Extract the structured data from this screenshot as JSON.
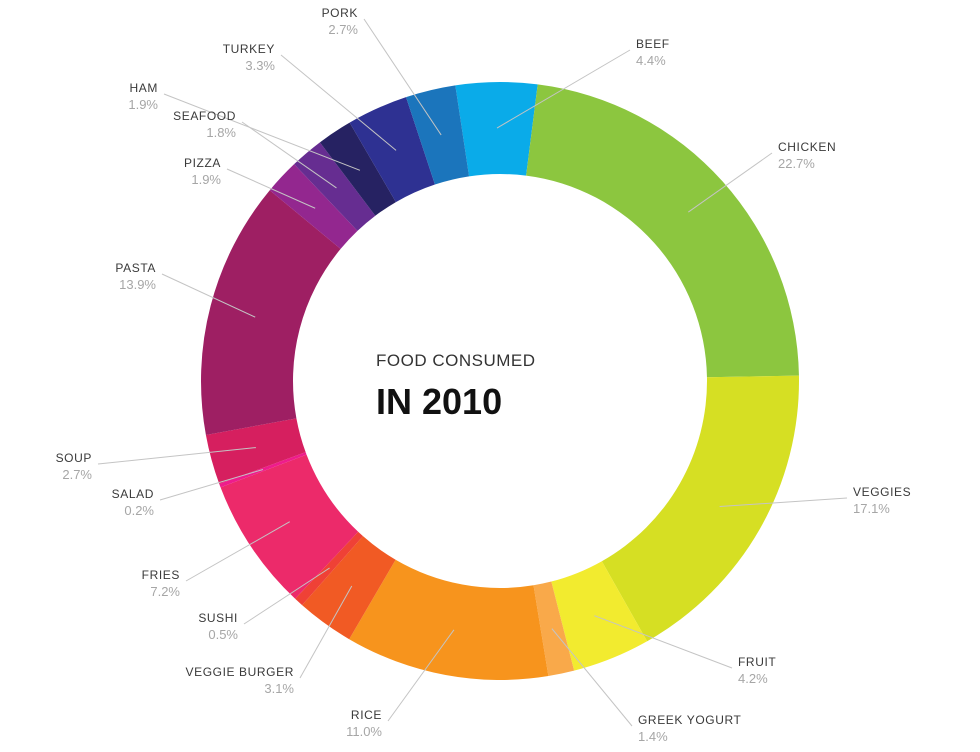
{
  "chart_data": {
    "type": "pie",
    "title": "FOOD CONSUMED",
    "subtitle": "IN 2010",
    "slices": [
      {
        "label": "BEEF",
        "value_text": "4.4%",
        "value": 4.4,
        "color": "#0aabe9"
      },
      {
        "label": "CHICKEN",
        "value_text": "22.7%",
        "value": 22.7,
        "color": "#8cc63f"
      },
      {
        "label": "VEGGIES",
        "value_text": "17.1%",
        "value": 17.1,
        "color": "#d6df23"
      },
      {
        "label": "FRUIT",
        "value_text": "4.2%",
        "value": 4.2,
        "color": "#f2eb2f"
      },
      {
        "label": "GREEK YOGURT",
        "value_text": "1.4%",
        "value": 1.4,
        "color": "#f9a94a"
      },
      {
        "label": "RICE",
        "value_text": "11.0%",
        "value": 11.0,
        "color": "#f7941d"
      },
      {
        "label": "VEGGIE BURGER",
        "value_text": "3.1%",
        "value": 3.1,
        "color": "#f15a24"
      },
      {
        "label": "SUSHI",
        "value_text": "0.5%",
        "value": 0.5,
        "color": "#ef4136"
      },
      {
        "label": "FRIES",
        "value_text": "7.2%",
        "value": 7.2,
        "color": "#ec2a6a"
      },
      {
        "label": "SALAD",
        "value_text": "0.2%",
        "value": 0.2,
        "color": "#ee1c8c"
      },
      {
        "label": "SOUP",
        "value_text": "2.7%",
        "value": 2.7,
        "color": "#d61f5f"
      },
      {
        "label": "PASTA",
        "value_text": "13.9%",
        "value": 13.9,
        "color": "#9e1f63"
      },
      {
        "label": "PIZZA",
        "value_text": "1.9%",
        "value": 1.9,
        "color": "#93278f"
      },
      {
        "label": "SEAFOOD",
        "value_text": "1.8%",
        "value": 1.8,
        "color": "#662d91"
      },
      {
        "label": "HAM",
        "value_text": "1.9%",
        "value": 1.9,
        "color": "#262262"
      },
      {
        "label": "TURKEY",
        "value_text": "3.3%",
        "value": 3.3,
        "color": "#2e3192"
      },
      {
        "label": "PORK",
        "value_text": "2.7%",
        "value": 2.7,
        "color": "#1b75bc"
      }
    ]
  }
}
